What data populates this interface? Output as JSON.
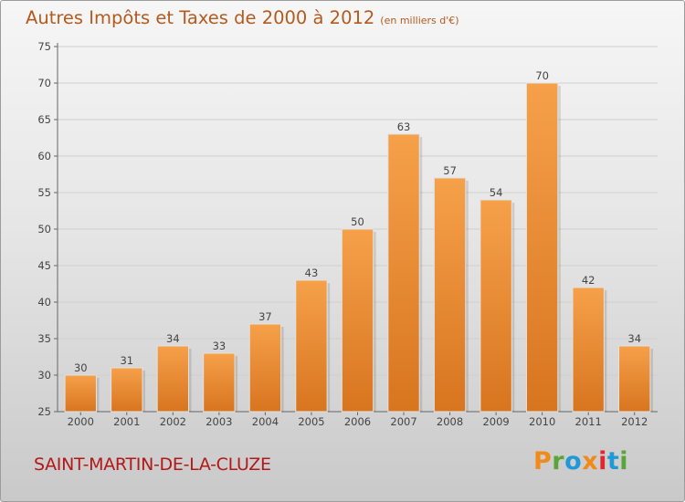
{
  "title": "Autres Impôts et Taxes de 2000 à 2012",
  "unit_note": "(en milliers d'€)",
  "commune": "SAINT-MARTIN-DE-LA-CLUZE",
  "brand": "Proxiti",
  "colors": {
    "bar_top": "#f6a04a",
    "bar_bottom": "#d8751f",
    "title": "#b35a1f",
    "commune": "#b31818",
    "brand_letters": [
      "#f08a1a",
      "#5aa538",
      "#1f9ad7",
      "#f08a1a",
      "#e2262b",
      "#1f9ad7",
      "#5aa538"
    ]
  },
  "chart_data": {
    "type": "bar",
    "categories": [
      "2000",
      "2001",
      "2002",
      "2003",
      "2004",
      "2005",
      "2006",
      "2007",
      "2008",
      "2009",
      "2010",
      "2011",
      "2012"
    ],
    "values": [
      30,
      31,
      34,
      33,
      37,
      43,
      50,
      63,
      57,
      54,
      70,
      42,
      34
    ],
    "ylim": [
      25,
      75
    ],
    "yticks": [
      25,
      30,
      35,
      40,
      45,
      50,
      55,
      60,
      65,
      70,
      75
    ],
    "grid": true,
    "data_labels": true,
    "title": "Autres Impôts et Taxes de 2000 à 2012",
    "xlabel": "",
    "ylabel": ""
  }
}
